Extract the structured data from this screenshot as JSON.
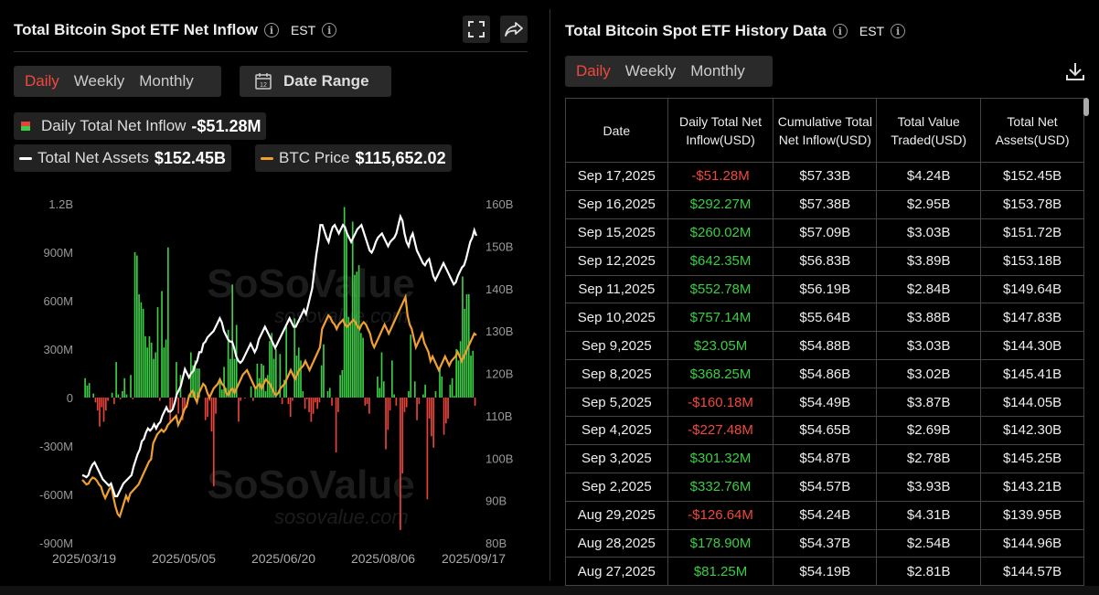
{
  "left": {
    "title": "Total Bitcoin Spot ETF Net Inflow",
    "tz": "EST",
    "tabs": [
      "Daily",
      "Weekly",
      "Monthly"
    ],
    "active_tab": "Daily",
    "date_range_label": "Date Range",
    "legend": {
      "daily_label": "Daily Total Net Inflow",
      "daily_value": "-$51.28M",
      "assets_label": "Total Net Assets",
      "assets_value": "$152.45B",
      "btc_label": "BTC Price",
      "btc_value": "$115,652.02"
    },
    "watermark": "SoSoValue",
    "watermark_url": "sosovalue.com"
  },
  "chart_data": {
    "type": "bar",
    "title": "",
    "x_ticks": [
      "2025/03/19",
      "2025/05/05",
      "2025/06/20",
      "2025/08/06",
      "2025/09/17"
    ],
    "y_left_ticks": [
      "1.2B",
      "900M",
      "600M",
      "300M",
      "0",
      "-300M",
      "-600M",
      "-900M"
    ],
    "y_right_ticks": [
      "160B",
      "150B",
      "140B",
      "130B",
      "120B",
      "110B",
      "100B",
      "90B",
      "80B"
    ],
    "ylim_left": [
      -900,
      1200
    ],
    "ylim_right": [
      80,
      160
    ],
    "colors": {
      "positive": "#3ccc46",
      "negative": "#e8433a",
      "assets": "#ffffff",
      "btc": "#f0a030"
    },
    "series": [
      {
        "name": "Daily Total Net Inflow",
        "unit": "M USD",
        "values": [
          0,
          120,
          75,
          90,
          0,
          25,
          -30,
          -80,
          -180,
          -60,
          -150,
          -80,
          -20,
          0,
          30,
          -40,
          220,
          20,
          -10,
          40,
          120,
          20,
          0,
          140,
          -10,
          900,
          880,
          640,
          590,
          550,
          380,
          310,
          380,
          340,
          240,
          280,
          560,
          -20,
          660,
          310,
          360,
          930,
          -150,
          -70,
          0,
          220,
          -100,
          140,
          -140,
          -80,
          0,
          20,
          280,
          200,
          230,
          180,
          180,
          0,
          0,
          -140,
          -120,
          -20,
          -210,
          -550,
          -100,
          0,
          120,
          50,
          190,
          60,
          420,
          240,
          700,
          240,
          450,
          -150,
          -20,
          0,
          -5,
          0,
          0,
          70,
          -20,
          50,
          210,
          120,
          210,
          200,
          40,
          140,
          350,
          400,
          240,
          300,
          0,
          270,
          -40,
          110,
          440,
          -40,
          -120,
          -20,
          490,
          260,
          310,
          230,
          40,
          -70,
          -10,
          -90,
          -150,
          -100,
          -30,
          -70,
          -30,
          200,
          330,
          0,
          40,
          60,
          -50,
          0,
          -340,
          -90,
          140,
          170,
          1180,
          1030,
          500,
          460,
          1090,
          760,
          780,
          820,
          400,
          370,
          -50,
          -40,
          -100,
          0,
          0,
          0,
          130,
          60,
          280,
          100,
          -320,
          -200,
          -80,
          230,
          20,
          -50,
          0,
          -820,
          -470,
          -90,
          -60,
          40,
          390,
          0,
          100,
          -140,
          -40,
          0,
          20,
          80,
          -630,
          -130,
          -240,
          -310,
          40,
          0,
          180,
          130,
          -230,
          -160,
          -130,
          80,
          120,
          10,
          300,
          230,
          350,
          750,
          550,
          640,
          640,
          260,
          290,
          -51.28
        ]
      },
      {
        "name": "Total Net Assets",
        "unit": "B USD",
        "values": [
          96,
          95.8,
          95.5,
          96,
          97.5,
          98.5,
          99,
          98,
          97,
          96,
          95,
          94.5,
          94,
          93.5,
          94,
          92.5,
          91,
          91,
          92,
          93,
          94,
          94.5,
          95,
          95.5,
          96,
          98,
          99.5,
          101,
          102,
          104,
          104.5,
          106,
          107,
          106.5,
          107,
          108,
          107,
          108,
          108.5,
          110,
          111,
          112,
          111,
          111,
          111.5,
          113,
          115,
          116,
          117,
          119,
          121,
          120,
          119,
          120,
          120.5,
          122,
          123,
          125,
          125,
          127,
          127.5,
          128.5,
          129,
          129.5,
          130,
          131,
          132,
          133,
          132,
          130,
          129,
          128,
          127.5,
          127.5,
          126,
          124,
          123,
          122.5,
          123,
          124,
          125,
          126,
          127,
          126,
          125,
          126,
          128,
          129,
          130,
          131,
          130,
          129,
          128,
          127,
          126,
          127,
          128,
          129,
          130,
          131,
          132,
          133,
          132,
          131,
          131,
          132,
          133,
          134,
          135,
          134,
          136,
          138,
          140,
          144,
          148,
          151,
          155,
          155,
          153.5,
          152,
          151,
          153,
          154.5,
          155,
          154,
          153,
          154,
          155,
          154.5,
          153,
          152,
          151,
          152,
          153,
          154,
          154.5,
          155,
          153.5,
          152,
          150.5,
          149,
          148.5,
          149.5,
          151,
          152,
          152.5,
          153,
          152,
          151,
          150,
          151,
          151.5,
          152,
          153,
          155,
          157,
          156,
          153,
          151,
          150,
          152,
          153,
          151,
          149,
          148,
          147,
          146,
          145.5,
          146.5,
          147,
          145,
          143,
          142,
          143,
          144,
          145,
          146,
          145,
          144,
          143,
          142,
          141,
          141.5,
          143,
          144,
          145,
          145.5,
          147,
          149,
          151,
          152,
          153.78,
          152.45
        ]
      },
      {
        "name": "BTC Price",
        "unit": "K USD",
        "values": [
          84,
          83.5,
          83,
          83.2,
          84,
          84.5,
          84.3,
          83.8,
          83,
          82.5,
          81,
          80,
          81,
          82,
          82.5,
          80,
          78,
          76.5,
          76,
          77.5,
          79,
          80.5,
          79.5,
          81,
          81.5,
          82,
          82.5,
          83,
          84,
          85,
          86,
          87,
          88,
          88.5,
          92,
          93,
          94,
          94.5,
          95,
          94.5,
          95,
          96,
          96.5,
          97,
          97.5,
          98,
          96,
          97,
          98,
          99.5,
          100,
          102,
          103,
          103.5,
          102,
          101,
          103,
          104,
          105,
          104.5,
          103,
          102,
          103,
          104,
          104.5,
          105,
          106,
          105,
          104.5,
          103,
          102.5,
          103.5,
          104,
          103,
          104,
          105,
          106,
          107,
          107.5,
          108,
          107,
          106,
          105,
          104,
          104.5,
          105,
          104,
          105,
          106,
          105.5,
          105,
          104,
          103,
          102.5,
          103,
          104,
          104.5,
          105,
          106,
          107,
          108,
          107,
          106,
          107,
          108,
          108.5,
          109,
          110,
          109,
          108,
          109,
          110,
          111,
          112,
          113,
          117,
          118,
          119,
          120,
          119.5,
          118.5,
          118,
          117,
          118,
          118.5,
          119,
          118,
          117.5,
          118,
          118.5,
          119,
          118.5,
          117.5,
          117,
          118,
          118.5,
          118,
          117,
          116,
          114,
          113,
          114,
          115,
          116,
          117,
          118,
          117,
          116,
          117,
          118,
          119,
          120,
          121,
          122,
          123,
          124,
          120,
          118,
          117,
          115,
          113,
          114,
          115,
          116,
          114,
          113,
          112,
          110,
          111,
          110,
          109,
          108,
          109,
          110,
          111,
          110,
          109,
          110,
          110.5,
          111,
          112,
          111,
          110,
          111,
          112,
          113,
          114,
          115,
          116,
          115.65
        ]
      }
    ]
  },
  "right": {
    "title": "Total Bitcoin Spot ETF History Data",
    "tz": "EST",
    "tabs": [
      "Daily",
      "Weekly",
      "Monthly"
    ],
    "active_tab": "Daily",
    "columns": [
      "Date",
      "Daily Total Net Inflow(USD)",
      "Cumulative Total Net Inflow(USD)",
      "Total Value Traded(USD)",
      "Total Net Assets(USD)"
    ],
    "rows": [
      [
        "Sep 17,2025",
        "-$51.28M",
        "$57.33B",
        "$4.24B",
        "$152.45B"
      ],
      [
        "Sep 16,2025",
        "$292.27M",
        "$57.38B",
        "$2.95B",
        "$153.78B"
      ],
      [
        "Sep 15,2025",
        "$260.02M",
        "$57.09B",
        "$3.03B",
        "$151.72B"
      ],
      [
        "Sep 12,2025",
        "$642.35M",
        "$56.83B",
        "$3.89B",
        "$153.18B"
      ],
      [
        "Sep 11,2025",
        "$552.78M",
        "$56.19B",
        "$2.84B",
        "$149.64B"
      ],
      [
        "Sep 10,2025",
        "$757.14M",
        "$55.64B",
        "$3.88B",
        "$147.83B"
      ],
      [
        "Sep 9,2025",
        "$23.05M",
        "$54.88B",
        "$3.03B",
        "$144.30B"
      ],
      [
        "Sep 8,2025",
        "$368.25M",
        "$54.86B",
        "$3.02B",
        "$145.41B"
      ],
      [
        "Sep 5,2025",
        "-$160.18M",
        "$54.49B",
        "$3.87B",
        "$144.05B"
      ],
      [
        "Sep 4,2025",
        "-$227.48M",
        "$54.65B",
        "$2.69B",
        "$142.30B"
      ],
      [
        "Sep 3,2025",
        "$301.32M",
        "$54.87B",
        "$2.78B",
        "$145.25B"
      ],
      [
        "Sep 2,2025",
        "$332.76M",
        "$54.57B",
        "$3.93B",
        "$143.21B"
      ],
      [
        "Aug 29,2025",
        "-$126.64M",
        "$54.24B",
        "$4.31B",
        "$139.95B"
      ],
      [
        "Aug 28,2025",
        "$178.90M",
        "$54.37B",
        "$2.54B",
        "$144.96B"
      ],
      [
        "Aug 27,2025",
        "$81.25M",
        "$54.19B",
        "$2.81B",
        "$144.57B"
      ]
    ]
  }
}
